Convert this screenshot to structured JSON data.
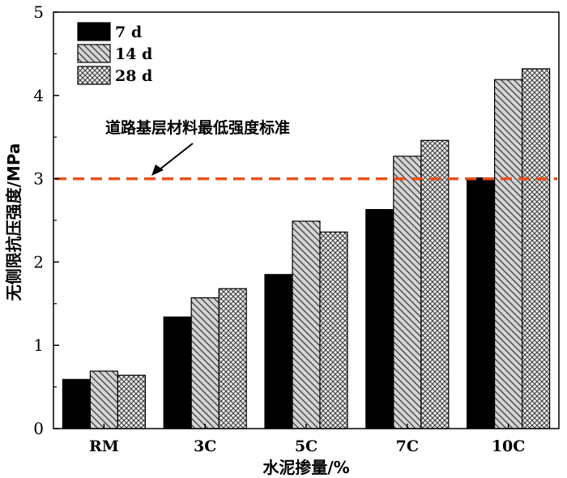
{
  "chart_data": {
    "type": "bar",
    "categories": [
      "RM",
      "3C",
      "5C",
      "7C",
      "10C"
    ],
    "series": [
      {
        "name": "7 d",
        "values": [
          0.59,
          1.34,
          1.85,
          2.63,
          3.01
        ],
        "fill": "solid",
        "color": "#000000"
      },
      {
        "name": "14 d",
        "values": [
          0.69,
          1.57,
          2.49,
          3.27,
          4.19
        ],
        "fill": "hatch",
        "color": "#d0d0d0"
      },
      {
        "name": "28 d",
        "values": [
          0.64,
          1.68,
          2.36,
          3.46,
          4.32
        ],
        "fill": "crosshatch",
        "color": "#e6e6e6"
      }
    ],
    "xlabel": "水泥掺量/%",
    "ylabel": "无侧限抗压强度/MPa",
    "ylim": [
      0,
      5
    ],
    "yticks": [
      0,
      1,
      2,
      3,
      4,
      5
    ],
    "reference_line": {
      "value": 3,
      "color": "#e8501a",
      "style": "dashed"
    },
    "annotation": {
      "text": "道路基层材料最低强度标准"
    },
    "legend_position": "top-left",
    "grid": false
  }
}
